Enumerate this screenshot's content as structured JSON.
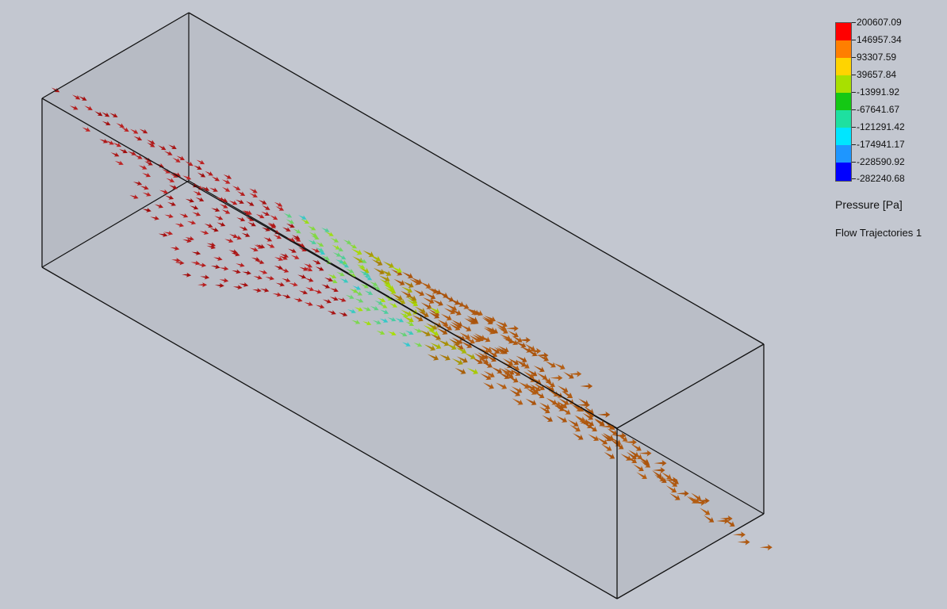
{
  "legend": {
    "title": "Pressure [Pa]",
    "ticks": [
      "200607.09",
      "146957.34",
      "93307.59",
      "39657.84",
      "-13991.92",
      "-67641.67",
      "-121291.42",
      "-174941.17",
      "-228590.92",
      "-282240.68"
    ],
    "colors": [
      "#ff0000",
      "#ff7f00",
      "#ffd400",
      "#a8e000",
      "#14c814",
      "#1ee0a0",
      "#00e6ff",
      "#1e96ff",
      "#0000ff"
    ]
  },
  "plot": {
    "name": "Flow Trajectories 1"
  },
  "scene_colors": {
    "background": "#c3c7d0",
    "box_face": "#b2b6bf",
    "edge": "#111111",
    "inlet": "#9e0b0b",
    "inlet_light": "#e04040",
    "outlet": "#a8520c",
    "throat": "#30c8d0"
  }
}
